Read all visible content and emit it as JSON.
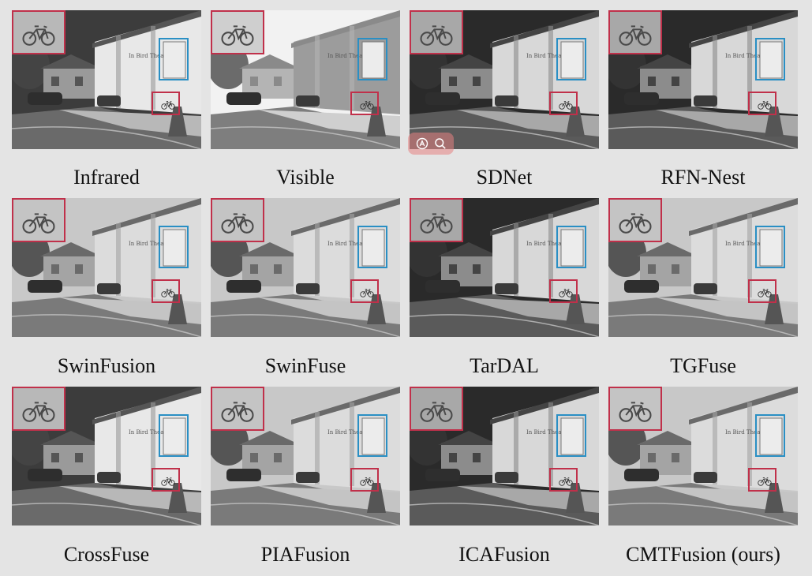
{
  "figure": {
    "panels": [
      {
        "caption": "Infrared",
        "tone": "infrared"
      },
      {
        "caption": "Visible",
        "tone": "visible"
      },
      {
        "caption": "SDNet",
        "tone": "dark"
      },
      {
        "caption": "RFN-Nest",
        "tone": "dark"
      },
      {
        "caption": "SwinFusion",
        "tone": "bright"
      },
      {
        "caption": "SwinFuse",
        "tone": "bright"
      },
      {
        "caption": "TarDAL",
        "tone": "dark"
      },
      {
        "caption": "TGFuse",
        "tone": "bright"
      },
      {
        "caption": "CrossFuse",
        "tone": "infrared"
      },
      {
        "caption": "PIAFusion",
        "tone": "bright"
      },
      {
        "caption": "ICAFusion",
        "tone": "dark"
      },
      {
        "caption": "CMTFusion (ours)",
        "tone": "bright"
      }
    ],
    "box_colors": {
      "zoom_inset": "#c0304a",
      "sign_box": "#2a8fc4"
    }
  },
  "viewer_tools": {
    "icons": [
      "ai-lens-icon",
      "magnifier-icon"
    ]
  }
}
